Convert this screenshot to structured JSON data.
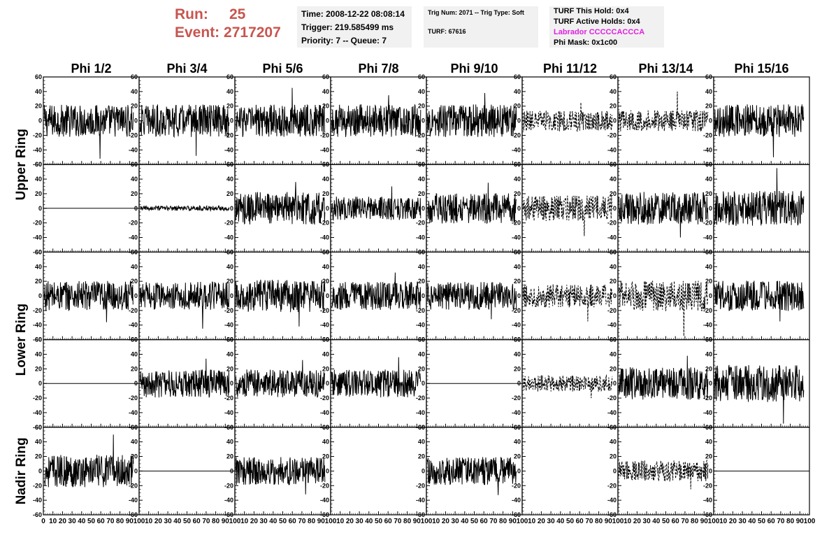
{
  "header": {
    "run_label": "Run:",
    "run_value": "25",
    "event_label": "Event:",
    "event_value": "2717207",
    "time_line": "Time: 2008-12-22 08:08:14",
    "trigger_line": "Trigger: 219.585499 ms",
    "priority_line": "Priority: 7 -- Queue: 7",
    "trig_num_line": "Trig Num: 2071 -- Trig Type: Soft",
    "turf_line": "TURF: 67616",
    "turf_hold_line": "TURF This Hold: 0x4",
    "turf_active_line": "TURF Active Holds: 0x4",
    "labrador_line": "Labrador CCCCCACCCA",
    "phi_mask_line": "Phi Mask: 0x1c00"
  },
  "colors": {
    "header_red": "#c8554f",
    "labrador_magenta": "#e020e0",
    "trace": "#000000"
  },
  "chart_data": {
    "type": "line",
    "columns": [
      "Phi 1/2",
      "Phi 3/4",
      "Phi 5/6",
      "Phi 7/8",
      "Phi 9/10",
      "Phi 11/12",
      "Phi 13/14",
      "Phi 15/16"
    ],
    "ring_labels": [
      {
        "text": "Upper Ring",
        "rows": [
          0,
          1
        ]
      },
      {
        "text": "Lower Ring",
        "rows": [
          2,
          3
        ]
      },
      {
        "text": "Nadir Ring",
        "rows": [
          4
        ]
      }
    ],
    "xlim": [
      0,
      100
    ],
    "ylim": [
      -60,
      60
    ],
    "x_ticks": [
      0,
      10,
      20,
      30,
      40,
      50,
      60,
      70,
      80,
      90,
      100
    ],
    "y_ticks": [
      -60,
      -40,
      -20,
      0,
      20,
      40,
      60
    ],
    "grid": false,
    "note_styles": "solid trace, dashed trace, flat (zero) trace, or empty",
    "panels": [
      [
        {
          "style": "solid",
          "amp": 14,
          "peak": 52
        },
        {
          "style": "solid",
          "amp": 14,
          "peak": 48
        },
        {
          "style": "solid",
          "amp": 14,
          "peak": 45
        },
        {
          "style": "solid",
          "amp": 14,
          "peak": 35
        },
        {
          "style": "solid",
          "amp": 14,
          "peak": 38
        },
        {
          "style": "dashed",
          "amp": 9,
          "peak": 25
        },
        {
          "style": "dashed",
          "amp": 9,
          "peak": 40
        },
        {
          "style": "solid",
          "amp": 14,
          "peak": 50
        }
      ],
      [
        {
          "style": "flat",
          "amp": 0,
          "peak": 0
        },
        {
          "style": "solid",
          "amp": 2,
          "peak": 4
        },
        {
          "style": "solid",
          "amp": 14,
          "peak": 36
        },
        {
          "style": "solid",
          "amp": 10,
          "peak": 30
        },
        {
          "style": "solid",
          "amp": 13,
          "peak": 35
        },
        {
          "style": "dashed",
          "amp": 11,
          "peak": 38
        },
        {
          "style": "solid",
          "amp": 14,
          "peak": 40
        },
        {
          "style": "solid",
          "amp": 15,
          "peak": 55
        }
      ],
      [
        {
          "style": "solid",
          "amp": 13,
          "peak": 36
        },
        {
          "style": "solid",
          "amp": 12,
          "peak": 45
        },
        {
          "style": "solid",
          "amp": 14,
          "peak": 42
        },
        {
          "style": "solid",
          "amp": 12,
          "peak": 32
        },
        {
          "style": "solid",
          "amp": 12,
          "peak": 32
        },
        {
          "style": "dashed",
          "amp": 10,
          "peak": 35
        },
        {
          "style": "dashed",
          "amp": 13,
          "peak": 55
        },
        {
          "style": "solid",
          "amp": 13,
          "peak": 35
        }
      ],
      [
        {
          "style": "flat",
          "amp": 0,
          "peak": 0
        },
        {
          "style": "solid",
          "amp": 12,
          "peak": 34
        },
        {
          "style": "solid",
          "amp": 12,
          "peak": 32
        },
        {
          "style": "solid",
          "amp": 12,
          "peak": 36
        },
        {
          "style": "flat",
          "amp": 0,
          "peak": 0
        },
        {
          "style": "dashed",
          "amp": 7,
          "peak": 20
        },
        {
          "style": "solid",
          "amp": 14,
          "peak": 38
        },
        {
          "style": "solid",
          "amp": 16,
          "peak": 55
        }
      ],
      [
        {
          "style": "solid",
          "amp": 14,
          "peak": 50
        },
        {
          "style": "flat",
          "amp": 0,
          "peak": 0
        },
        {
          "style": "solid",
          "amp": 12,
          "peak": 32
        },
        {
          "style": "empty",
          "amp": 0,
          "peak": 0
        },
        {
          "style": "solid",
          "amp": 12,
          "peak": 33
        },
        {
          "style": "empty",
          "amp": 0,
          "peak": 0
        },
        {
          "style": "dashed",
          "amp": 9,
          "peak": 25
        },
        {
          "style": "flat",
          "amp": 0,
          "peak": 0
        }
      ]
    ]
  }
}
